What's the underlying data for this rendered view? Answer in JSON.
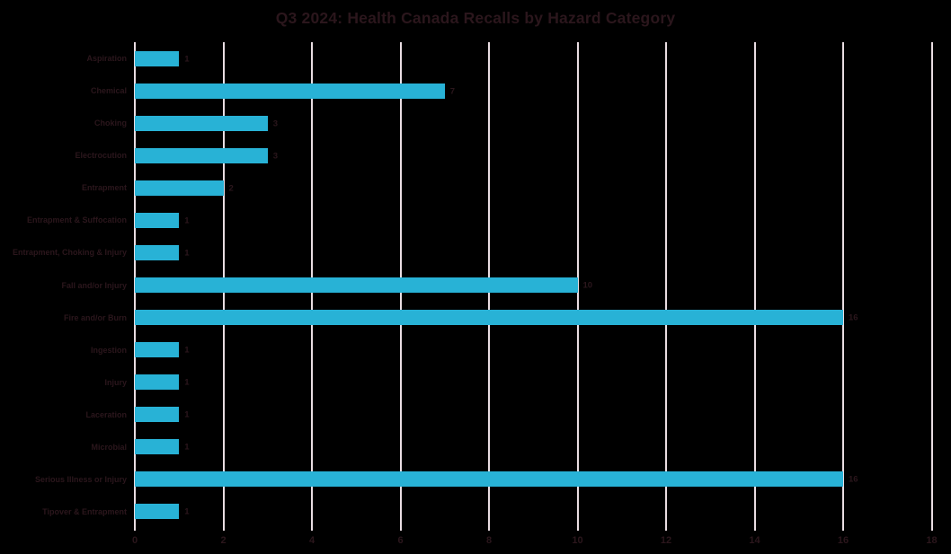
{
  "chart_data": {
    "type": "bar",
    "orientation": "horizontal",
    "title": "Q3 2024: Health Canada Recalls by Hazard Category",
    "categories": [
      "Aspiration",
      "Chemical",
      "Choking",
      "Electrocution",
      "Entrapment",
      "Entrapment & Suffocation",
      "Entrapment, Choking & Injury",
      "Fall and/or Injury",
      "Fire and/or Burn",
      "Ingestion",
      "Injury",
      "Laceration",
      "Microbial",
      "Serious Illness or Injury",
      "Tipover & Entrapment"
    ],
    "values": [
      1,
      7,
      3,
      3,
      2,
      1,
      1,
      10,
      16,
      1,
      1,
      1,
      1,
      16,
      1
    ],
    "xlabel": "",
    "ylabel": "",
    "xlim": [
      0,
      18
    ],
    "xticks": [
      0,
      2,
      4,
      6,
      8,
      10,
      12,
      14,
      16,
      18
    ],
    "grid": "vertical",
    "data_labels": true,
    "legend": "none",
    "colors": {
      "bar": "#28b2d6",
      "gridline": "#e9dde2",
      "text": "#2b161c",
      "background": "#000000"
    }
  }
}
